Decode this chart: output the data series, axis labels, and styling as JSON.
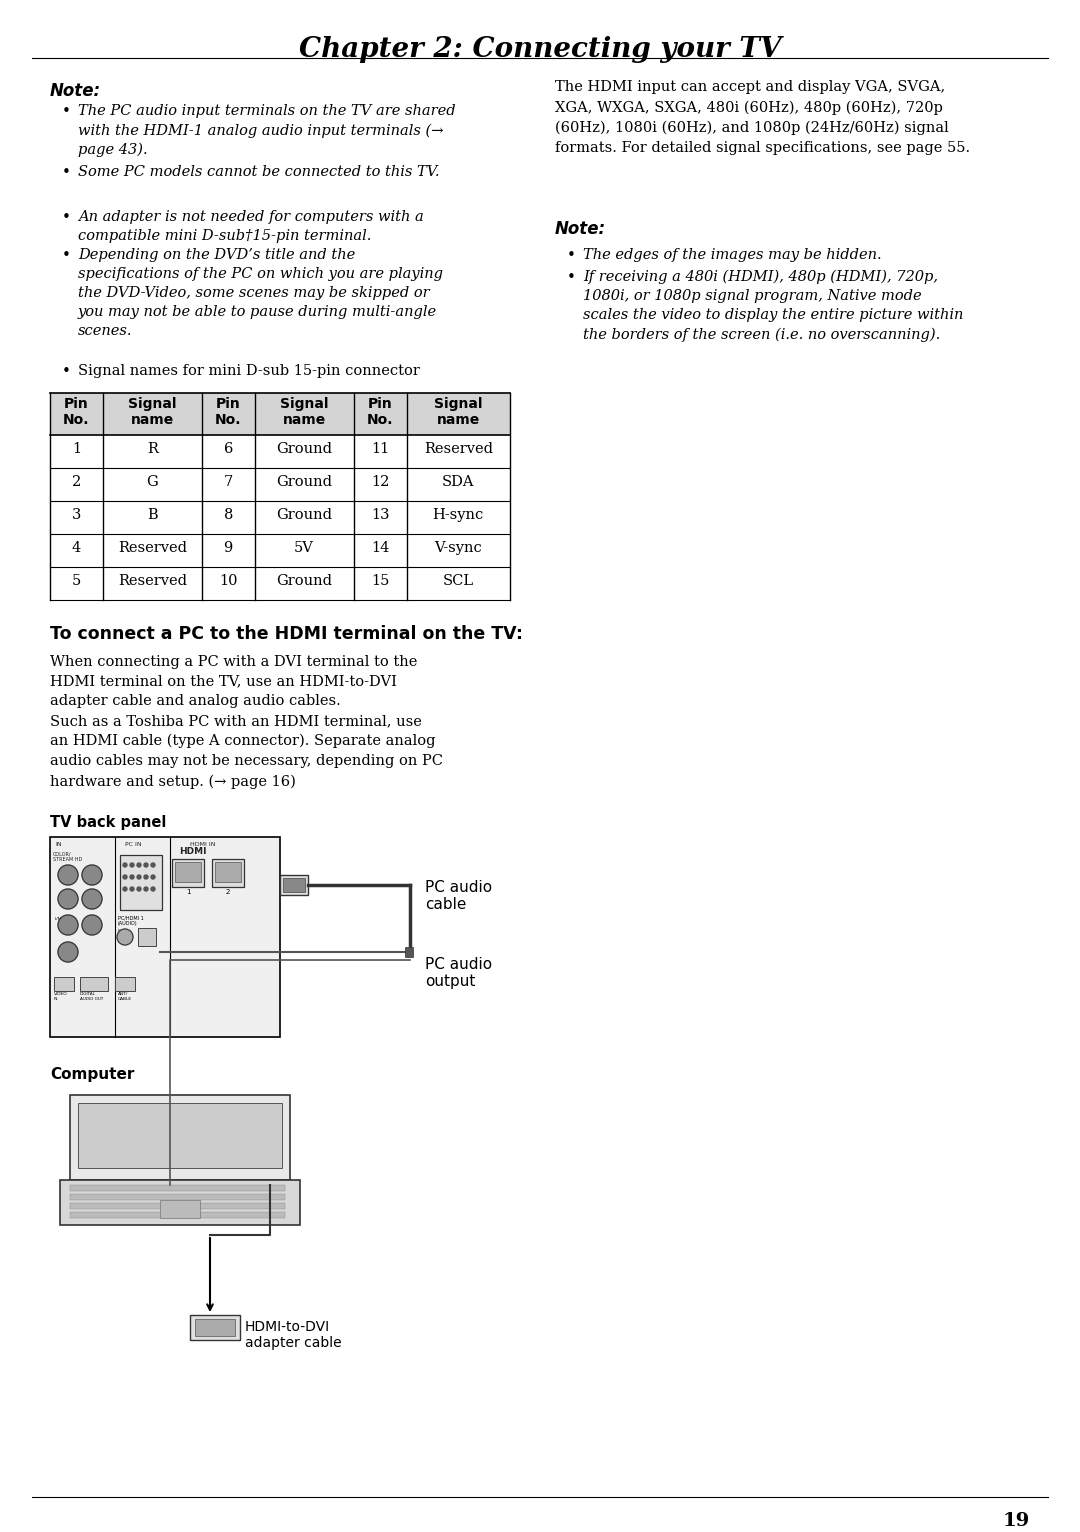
{
  "page_bg": "#ffffff",
  "title": "Chapter 2: Connecting your TV",
  "left_note_label": "Note:",
  "left_bullets": [
    {
      "text": "The PC audio input terminals on the TV are shared\nwith the HDMI-1 analog audio input terminals (→\npage 43).",
      "italic": true
    },
    {
      "text": "Some PC models cannot be connected to this TV.",
      "italic": true
    },
    {
      "text": "An adapter is not needed for computers with a\ncompatible mini D-sub†15-pin terminal.",
      "italic": true
    },
    {
      "text": "Depending on the DVD’s title and the\nspecifications of the PC on which you are playing\nthe DVD-Video, some scenes may be skipped or\nyou may not be able to pause during multi-angle\nscenes.",
      "italic": true
    },
    {
      "text": "Signal names for mini D-sub 15-pin connector",
      "italic": false
    }
  ],
  "table_header": [
    "Pin\nNo.",
    "Signal\nname",
    "Pin\nNo.",
    "Signal\nname",
    "Pin\nNo.",
    "Signal\nname"
  ],
  "table_rows": [
    [
      "1",
      "R",
      "6",
      "Ground",
      "11",
      "Reserved"
    ],
    [
      "2",
      "G",
      "7",
      "Ground",
      "12",
      "SDA"
    ],
    [
      "3",
      "B",
      "8",
      "Ground",
      "13",
      "H-sync"
    ],
    [
      "4",
      "Reserved",
      "9",
      "5V",
      "14",
      "V-sync"
    ],
    [
      "5",
      "Reserved",
      "10",
      "Ground",
      "15",
      "SCL"
    ]
  ],
  "sec2_label": "To connect a PC to the HDMI terminal on the TV:",
  "sec2_body": "When connecting a PC with a DVI terminal to the\nHDMI terminal on the TV, use an HDMI-to-DVI\nadapter cable and analog audio cables.\nSuch as a Toshiba PC with an HDMI terminal, use\nan HDMI cable (type A connector). Separate analog\naudio cables may not be necessary, depending on PC\nhardware and setup. (→ page 16)",
  "tv_label": "TV back panel",
  "pc_audio_cable": "PC audio\ncable",
  "pc_audio_output": "PC audio\noutput",
  "computer_label": "Computer",
  "hdmi_dvi_label": "HDMI-to-DVI\nadapter cable",
  "right_body": "The HDMI input can accept and display VGA, SVGA,\nXGA, WXGA, SXGA, 480i (60Hz), 480p (60Hz), 720p\n(60Hz), 1080i (60Hz), and 1080p (24Hz/60Hz) signal\nformats. For detailed signal specifications, see page 55.",
  "right_note_label": "Note:",
  "right_bullets": [
    {
      "text": "The edges of the images may be hidden.",
      "italic": true
    },
    {
      "text": "If receiving a 480i (HDMI), 480p (HDMI), 720p,\n1080i, or 1080p signal program, Native mode\nscales the video to display the entire picture within\nthe borders of the screen (i.e. no overscanning).",
      "italic": true
    }
  ],
  "page_number": "19",
  "col_props": [
    0.115,
    0.215,
    0.115,
    0.215,
    0.115,
    0.225
  ]
}
